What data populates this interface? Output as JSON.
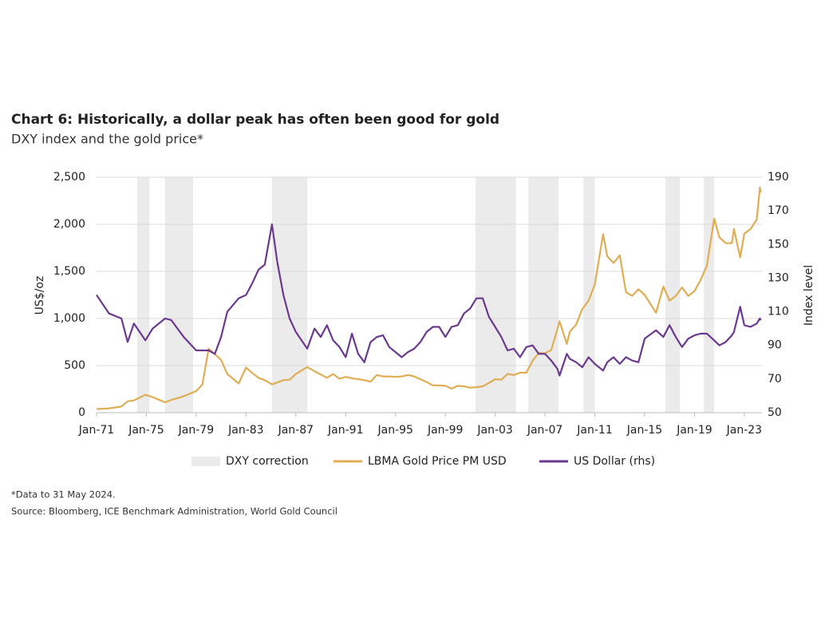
{
  "chart_data": {
    "type": "line",
    "title": "Chart 6: Historically, a dollar peak has often been good for gold",
    "subtitle": "DXY index and the gold price*",
    "ylabel": "US$/oz",
    "y2label": "Index level",
    "footnote": "*Data to 31 May 2024.",
    "source": "Source: Bloomberg, ICE Benchmark Administration, World Gold Council",
    "xlim": [
      "Jan-71",
      "Jun-24"
    ],
    "xticks": [
      "Jan-71",
      "Jan-75",
      "Jan-79",
      "Jan-83",
      "Jan-87",
      "Jan-91",
      "Jan-95",
      "Jan-99",
      "Jan-03",
      "Jan-07",
      "Jan-11",
      "Jan-15",
      "Jan-19",
      "Jan-23"
    ],
    "ylim": [
      0,
      2500
    ],
    "yticks": [
      0,
      500,
      {
        "value": 1000,
        "label": "1,000"
      },
      {
        "value": 1500,
        "label": "1,500"
      },
      {
        "value": 2000,
        "label": "2,000"
      },
      {
        "value": 2500,
        "label": "2,500"
      }
    ],
    "y2lim": [
      50,
      190
    ],
    "y2ticks": [
      50,
      70,
      90,
      110,
      130,
      150,
      170,
      190
    ],
    "grid": true,
    "corrections_label": "DXY correction",
    "corrections_color": "#ebebeb",
    "corrections": [
      [
        "Apr-74",
        "Apr-75"
      ],
      [
        "Jul-76",
        "Oct-78"
      ],
      [
        "Feb-85",
        "Dec-87"
      ],
      [
        "Jun-01",
        "Sep-04"
      ],
      [
        "Sep-05",
        "Feb-08"
      ],
      [
        "Feb-10",
        "Jan-11"
      ],
      [
        "Sep-16",
        "Nov-17"
      ],
      [
        "Oct-19",
        "Aug-20"
      ]
    ],
    "x": [
      "Jan-71",
      "Jan-72",
      "Jan-73",
      "Jul-73",
      "Jan-74",
      "Dec-74",
      "Jul-75",
      "Jul-76",
      "Jan-77",
      "Jan-78",
      "Jan-79",
      "Jul-79",
      "Jan-80",
      "Jul-80",
      "Jan-81",
      "Jul-81",
      "Jun-82",
      "Jan-83",
      "Jul-83",
      "Jan-84",
      "Jul-84",
      "Feb-85",
      "Jul-85",
      "Jan-86",
      "Jul-86",
      "Jan-87",
      "Dec-87",
      "Jul-88",
      "Jan-89",
      "Jul-89",
      "Jan-90",
      "Jul-90",
      "Jan-91",
      "Jul-91",
      "Jan-92",
      "Jul-92",
      "Jan-93",
      "Jul-93",
      "Jan-94",
      "Jul-94",
      "Jan-95",
      "Jul-95",
      "Jan-96",
      "Jul-96",
      "Jan-97",
      "Jul-97",
      "Jan-98",
      "Jul-98",
      "Jan-99",
      "Jul-99",
      "Jan-00",
      "Jul-00",
      "Jan-01",
      "Jul-01",
      "Jan-02",
      "Jul-02",
      "Jan-03",
      "Jul-03",
      "Jan-04",
      "Jul-04",
      "Jan-05",
      "Jul-05",
      "Jan-06",
      "Jul-06",
      "Jan-07",
      "Jul-07",
      "Jan-08",
      "Mar-08",
      "Oct-08",
      "Jan-09",
      "Jul-09",
      "Jan-10",
      "Jul-10",
      "Jan-11",
      "Sep-11",
      "Jan-12",
      "Jul-12",
      "Jan-13",
      "Jul-13",
      "Jan-14",
      "Jul-14",
      "Jan-15",
      "Dec-15",
      "Jul-16",
      "Jan-17",
      "Jul-17",
      "Jan-18",
      "Jul-18",
      "Jan-19",
      "Jul-19",
      "Jan-20",
      "Aug-20",
      "Jan-21",
      "Jul-21",
      "Jan-22",
      "Mar-22",
      "Sep-22",
      "Jan-23",
      "Jul-23",
      "Jan-24",
      "Apr-24",
      "May-24"
    ],
    "series": [
      {
        "name": "LBMA Gold Price PM USD",
        "color": "#e0ad55",
        "values": [
          38,
          46,
          65,
          120,
          130,
          190,
          165,
          110,
          135,
          175,
          230,
          300,
          680,
          620,
          560,
          410,
          310,
          480,
          420,
          370,
          345,
          300,
          320,
          345,
          350,
          410,
          485,
          440,
          405,
          370,
          410,
          360,
          380,
          365,
          355,
          345,
          330,
          400,
          385,
          385,
          380,
          385,
          400,
          385,
          355,
          325,
          290,
          290,
          285,
          255,
          285,
          280,
          265,
          270,
          280,
          315,
          355,
          350,
          410,
          400,
          425,
          425,
          550,
          635,
          630,
          665,
          890,
          970,
          730,
          860,
          935,
          1100,
          1190,
          1360,
          1895,
          1660,
          1590,
          1670,
          1280,
          1240,
          1310,
          1250,
          1060,
          1340,
          1190,
          1240,
          1330,
          1240,
          1290,
          1410,
          1560,
          2060,
          1860,
          1800,
          1800,
          1950,
          1650,
          1900,
          1950,
          2050,
          2390,
          2340
        ]
      },
      {
        "name": "US Dollar (rhs)",
        "color": "#6b3a8f",
        "axis": "y2",
        "values": [
          120,
          109,
          106,
          92,
          103,
          93,
          100,
          106,
          105,
          95,
          87,
          87,
          87,
          85,
          95,
          110,
          118,
          120,
          127,
          135,
          138,
          162,
          140,
          120,
          106,
          98,
          88,
          100,
          95,
          102,
          93,
          89,
          83,
          97,
          85,
          80,
          92,
          95,
          96,
          89,
          86,
          83,
          86,
          88,
          92,
          98,
          101,
          101,
          95,
          101,
          102,
          109,
          112,
          118,
          118,
          107,
          101,
          95,
          87,
          88,
          83,
          89,
          90,
          85,
          85,
          81,
          76,
          72,
          85,
          82,
          80,
          77,
          83,
          79,
          75,
          80,
          83,
          79,
          83,
          81,
          80,
          94,
          99,
          95,
          102,
          95,
          89,
          94,
          96,
          97,
          97,
          93,
          90,
          92,
          96,
          98,
          113,
          102,
          101,
          103,
          106,
          105
        ]
      }
    ]
  }
}
